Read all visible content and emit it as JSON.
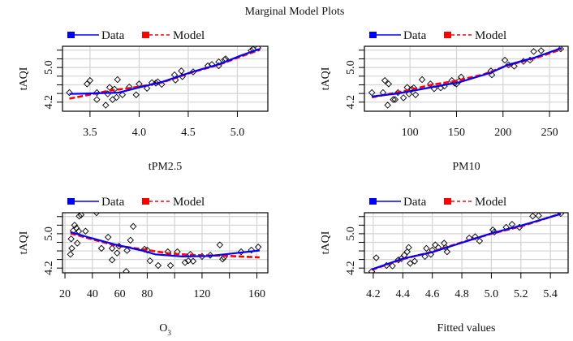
{
  "chart_data": {
    "type": "scatter",
    "title": "Marginal Model Plots",
    "legend": {
      "placement": "top-left of each panel",
      "entries": [
        {
          "label": "Data",
          "color": "#0000ff",
          "style": "solid"
        },
        {
          "label": "Model",
          "color": "#ff0000",
          "style": "dashed"
        }
      ]
    },
    "colors": {
      "data": "#0000ff",
      "model": "#ff0000",
      "grid": "#d3d3d3",
      "points": "#000000"
    },
    "panels": [
      {
        "id": "tpm25",
        "xlabel": "tPM2.5",
        "xlabel_sub": "",
        "ylabel": "tAQI",
        "xlim": [
          3.22,
          5.31
        ],
        "ylim": [
          3.99,
          5.49
        ],
        "xticks": [
          3.5,
          4.0,
          4.5,
          5.0
        ],
        "xtick_labels": [
          "3.5",
          "4.0",
          "4.5",
          "5.0"
        ],
        "yticks": [
          4.2,
          4.4,
          4.6,
          4.8,
          5.0,
          5.2,
          5.4
        ],
        "ytick_labels": [
          "4.2",
          "",
          "",
          "",
          "5.0",
          "",
          ""
        ],
        "grid": true,
        "points": [
          [
            3.29,
            4.42
          ],
          [
            3.47,
            4.62
          ],
          [
            3.5,
            4.7
          ],
          [
            3.57,
            4.42
          ],
          [
            3.57,
            4.26
          ],
          [
            3.66,
            4.13
          ],
          [
            3.68,
            4.39
          ],
          [
            3.7,
            4.54
          ],
          [
            3.73,
            4.26
          ],
          [
            3.75,
            4.5
          ],
          [
            3.78,
            4.72
          ],
          [
            3.77,
            4.31
          ],
          [
            3.83,
            4.37
          ],
          [
            3.9,
            4.55
          ],
          [
            3.97,
            4.37
          ],
          [
            4.0,
            4.62
          ],
          [
            4.08,
            4.52
          ],
          [
            4.13,
            4.65
          ],
          [
            4.17,
            4.64
          ],
          [
            4.19,
            4.67
          ],
          [
            4.23,
            4.61
          ],
          [
            4.36,
            4.83
          ],
          [
            4.37,
            4.71
          ],
          [
            4.43,
            4.92
          ],
          [
            4.44,
            4.79
          ],
          [
            4.55,
            4.9
          ],
          [
            4.7,
            5.04
          ],
          [
            4.74,
            5.07
          ],
          [
            4.81,
            5.04
          ],
          [
            4.81,
            5.13
          ],
          [
            4.87,
            5.18
          ],
          [
            4.88,
            5.2
          ],
          [
            5.14,
            5.39
          ],
          [
            5.16,
            5.42
          ],
          [
            5.21,
            5.45
          ]
        ],
        "data_line": [
          [
            3.29,
            4.39
          ],
          [
            3.5,
            4.4
          ],
          [
            3.79,
            4.42
          ],
          [
            4.0,
            4.54
          ],
          [
            4.24,
            4.67
          ],
          [
            4.54,
            4.9
          ],
          [
            4.82,
            5.08
          ],
          [
            5.03,
            5.27
          ],
          [
            5.23,
            5.43
          ]
        ],
        "model_line": [
          [
            3.29,
            4.28
          ],
          [
            3.49,
            4.37
          ],
          [
            3.71,
            4.47
          ],
          [
            3.99,
            4.55
          ],
          [
            4.24,
            4.66
          ],
          [
            4.54,
            4.89
          ],
          [
            4.82,
            5.07
          ],
          [
            5.03,
            5.25
          ],
          [
            5.23,
            5.41
          ]
        ]
      },
      {
        "id": "pm10",
        "xlabel": "PM10",
        "xlabel_sub": "",
        "ylabel": "tAQI",
        "xlim": [
          51,
          270
        ],
        "ylim": [
          3.99,
          5.49
        ],
        "xticks": [
          100,
          150,
          200,
          250
        ],
        "xtick_labels": [
          "100",
          "150",
          "200",
          "250"
        ],
        "yticks": [
          4.2,
          4.4,
          4.6,
          4.8,
          5.0,
          5.2,
          5.4
        ],
        "ytick_labels": [
          "4.2",
          "",
          "",
          "",
          "5.0",
          "",
          ""
        ],
        "grid": true,
        "points": [
          [
            59,
            4.42
          ],
          [
            71,
            4.42
          ],
          [
            73,
            4.7
          ],
          [
            77,
            4.62
          ],
          [
            76,
            4.13
          ],
          [
            82,
            4.26
          ],
          [
            84,
            4.26
          ],
          [
            87,
            4.42
          ],
          [
            93,
            4.3
          ],
          [
            97,
            4.54
          ],
          [
            99,
            4.39
          ],
          [
            102,
            4.5
          ],
          [
            104,
            4.53
          ],
          [
            106,
            4.37
          ],
          [
            113,
            4.72
          ],
          [
            122,
            4.62
          ],
          [
            126,
            4.51
          ],
          [
            133,
            4.53
          ],
          [
            137,
            4.57
          ],
          [
            145,
            4.7
          ],
          [
            148,
            4.64
          ],
          [
            150,
            4.62
          ],
          [
            153,
            4.69
          ],
          [
            155,
            4.78
          ],
          [
            187,
            4.92
          ],
          [
            188,
            4.83
          ],
          [
            202,
            5.17
          ],
          [
            206,
            5.06
          ],
          [
            212,
            5.03
          ],
          [
            222,
            5.14
          ],
          [
            229,
            5.17
          ],
          [
            233,
            5.37
          ],
          [
            241,
            5.39
          ],
          [
            262,
            5.43
          ]
        ],
        "data_line": [
          [
            59,
            4.33
          ],
          [
            87,
            4.4
          ],
          [
            135,
            4.59
          ],
          [
            153,
            4.66
          ],
          [
            187,
            4.88
          ],
          [
            205,
            5.06
          ],
          [
            234,
            5.23
          ],
          [
            263,
            5.45
          ]
        ],
        "model_line": [
          [
            59,
            4.31
          ],
          [
            97,
            4.47
          ],
          [
            123,
            4.6
          ],
          [
            149,
            4.69
          ],
          [
            179,
            4.84
          ],
          [
            205,
            5.05
          ],
          [
            234,
            5.21
          ],
          [
            263,
            5.42
          ]
        ]
      },
      {
        "id": "o3",
        "xlabel": "O",
        "xlabel_sub": "3",
        "ylabel": "tAQI",
        "xlim": [
          18.2,
          168
        ],
        "ylim": [
          4.09,
          5.49
        ],
        "xticks": [
          20,
          40,
          60,
          80,
          100,
          120,
          140,
          160
        ],
        "xtick_labels": [
          "20",
          "40",
          "60",
          "80",
          "",
          "120",
          "",
          "160"
        ],
        "yticks": [
          4.2,
          4.4,
          4.6,
          4.8,
          5.0,
          5.2,
          5.4
        ],
        "ytick_labels": [
          "4.2",
          "",
          "",
          "",
          "5.0",
          "",
          ""
        ],
        "grid": true,
        "points": [
          [
            24,
            4.52
          ],
          [
            24.5,
            4.88
          ],
          [
            25,
            4.66
          ],
          [
            26,
            5.07
          ],
          [
            27,
            5.2
          ],
          [
            28.4,
            5.13
          ],
          [
            29,
            4.78
          ],
          [
            30,
            5.06
          ],
          [
            30.4,
            5.41
          ],
          [
            31.8,
            5.44
          ],
          [
            35,
            5.06
          ],
          [
            43,
            5.49
          ],
          [
            46.6,
            4.66
          ],
          [
            51.5,
            4.92
          ],
          [
            54.4,
            4.66
          ],
          [
            54.4,
            4.39
          ],
          [
            58,
            4.55
          ],
          [
            59.4,
            4.71
          ],
          [
            64.7,
            4.12
          ],
          [
            65.3,
            4.61
          ],
          [
            67.8,
            4.85
          ],
          [
            69.8,
            5.17
          ],
          [
            78,
            4.64
          ],
          [
            80,
            4.62
          ],
          [
            82,
            4.37
          ],
          [
            88,
            4.26
          ],
          [
            95,
            4.58
          ],
          [
            97,
            4.26
          ],
          [
            102,
            4.58
          ],
          [
            107.6,
            4.33
          ],
          [
            110,
            4.37
          ],
          [
            111.5,
            4.52
          ],
          [
            113.5,
            4.36
          ],
          [
            120,
            4.47
          ],
          [
            126,
            4.5
          ],
          [
            133,
            4.74
          ],
          [
            135,
            4.41
          ],
          [
            136,
            4.45
          ],
          [
            148.5,
            4.58
          ],
          [
            156,
            4.62
          ],
          [
            161,
            4.69
          ]
        ],
        "data_line": [
          [
            24,
            5.04
          ],
          [
            36.7,
            4.92
          ],
          [
            56.4,
            4.75
          ],
          [
            76,
            4.61
          ],
          [
            86,
            4.52
          ],
          [
            105.6,
            4.47
          ],
          [
            125,
            4.48
          ],
          [
            145,
            4.55
          ],
          [
            162,
            4.61
          ]
        ],
        "model_line": [
          [
            24,
            5.01
          ],
          [
            36.7,
            4.9
          ],
          [
            56.4,
            4.73
          ],
          [
            76,
            4.64
          ],
          [
            96,
            4.54
          ],
          [
            115.5,
            4.5
          ],
          [
            135,
            4.49
          ],
          [
            162,
            4.45
          ]
        ]
      },
      {
        "id": "fitted",
        "xlabel": "Fitted values",
        "xlabel_sub": "",
        "ylabel": "tAQI",
        "xlim": [
          4.14,
          5.52
        ],
        "ylim": [
          4.09,
          5.49
        ],
        "xticks": [
          4.2,
          4.4,
          4.6,
          4.8,
          5.0,
          5.2,
          5.4
        ],
        "xtick_labels": [
          "4.2",
          "4.4",
          "4.6",
          "4.8",
          "5.0",
          "5.2",
          "5.4"
        ],
        "yticks": [
          4.2,
          4.4,
          4.6,
          4.8,
          5.0,
          5.2,
          5.4
        ],
        "ytick_labels": [
          "4.2",
          "",
          "",
          "",
          "5.0",
          "",
          ""
        ],
        "grid": true,
        "points": [
          [
            4.19,
            4.12
          ],
          [
            4.22,
            4.44
          ],
          [
            4.29,
            4.26
          ],
          [
            4.33,
            4.25
          ],
          [
            4.37,
            4.39
          ],
          [
            4.39,
            4.42
          ],
          [
            4.41,
            4.5
          ],
          [
            4.43,
            4.58
          ],
          [
            4.44,
            4.68
          ],
          [
            4.45,
            4.31
          ],
          [
            4.48,
            4.36
          ],
          [
            4.55,
            4.47
          ],
          [
            4.56,
            4.66
          ],
          [
            4.59,
            4.52
          ],
          [
            4.6,
            4.62
          ],
          [
            4.62,
            4.74
          ],
          [
            4.64,
            4.68
          ],
          [
            4.68,
            4.78
          ],
          [
            4.69,
            4.68
          ],
          [
            4.7,
            4.58
          ],
          [
            4.85,
            4.9
          ],
          [
            4.89,
            4.93
          ],
          [
            4.92,
            4.83
          ],
          [
            5.01,
            5.09
          ],
          [
            5.02,
            5.04
          ],
          [
            5.1,
            5.15
          ],
          [
            5.14,
            5.22
          ],
          [
            5.19,
            5.15
          ],
          [
            5.28,
            5.41
          ],
          [
            5.32,
            5.42
          ],
          [
            5.47,
            5.47
          ]
        ],
        "data_line": [
          [
            4.19,
            4.17
          ],
          [
            4.4,
            4.42
          ],
          [
            4.6,
            4.57
          ],
          [
            4.8,
            4.79
          ],
          [
            5.0,
            5.01
          ],
          [
            5.2,
            5.19
          ],
          [
            5.47,
            5.46
          ]
        ],
        "model_line": [
          [
            4.19,
            4.16
          ],
          [
            4.4,
            4.41
          ],
          [
            4.6,
            4.58
          ],
          [
            4.8,
            4.8
          ],
          [
            5.0,
            5.0
          ],
          [
            5.2,
            5.17
          ],
          [
            5.47,
            5.47
          ]
        ]
      }
    ]
  }
}
